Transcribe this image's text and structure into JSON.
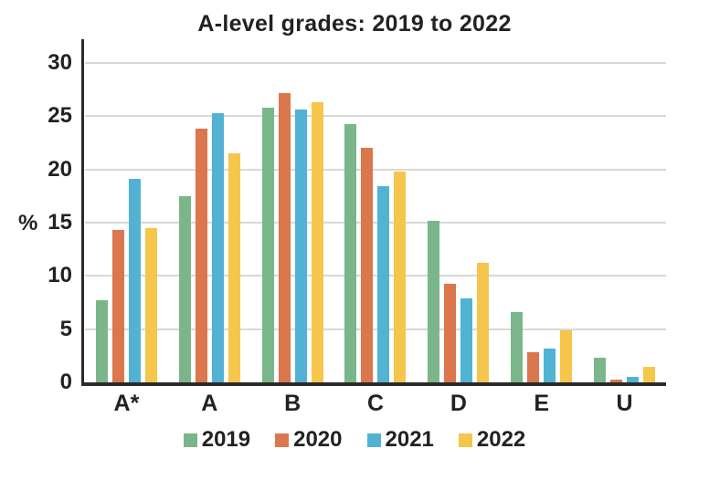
{
  "chart_data": {
    "type": "bar",
    "title": "A-level grades: 2019 to 2022",
    "ylabel": "%",
    "xlabel": "",
    "categories": [
      "A*",
      "A",
      "B",
      "C",
      "D",
      "E",
      "U"
    ],
    "series": [
      {
        "name": "2019",
        "color": "#7ab689",
        "values": [
          7.7,
          17.5,
          25.8,
          24.3,
          15.2,
          6.6,
          2.3
        ]
      },
      {
        "name": "2020",
        "color": "#db764d",
        "values": [
          14.3,
          23.8,
          27.2,
          22.0,
          9.3,
          2.8,
          0.3
        ]
      },
      {
        "name": "2021",
        "color": "#52b2d3",
        "values": [
          19.1,
          25.3,
          25.6,
          18.4,
          7.9,
          3.2,
          0.5
        ]
      },
      {
        "name": "2022",
        "color": "#f5c64b",
        "values": [
          14.5,
          21.5,
          26.3,
          19.8,
          11.2,
          4.9,
          1.5
        ]
      }
    ],
    "ylim": [
      0,
      30
    ],
    "yticks": [
      0,
      5,
      10,
      15,
      20,
      25,
      30
    ],
    "grid": true,
    "legend_position": "bottom"
  },
  "colors": {
    "axis": "#2d2a28",
    "grid": "#d8d8d8",
    "text": "#242122",
    "background": "#ffffff"
  }
}
